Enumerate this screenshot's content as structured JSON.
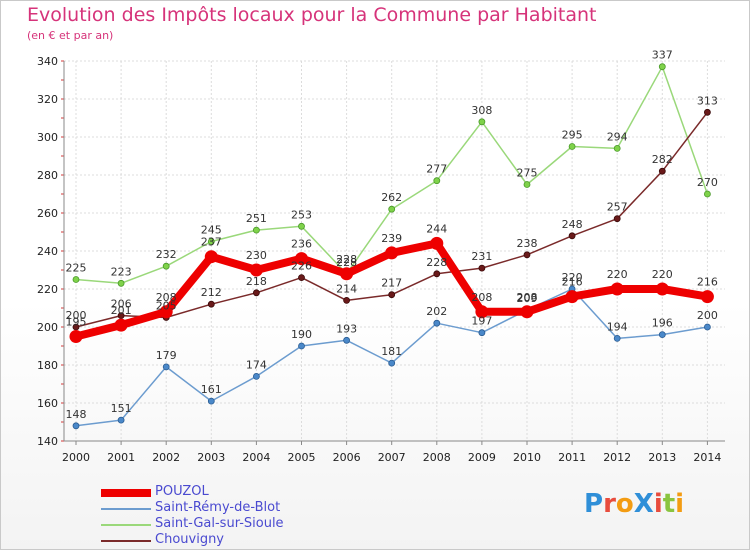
{
  "title": "Evolution des Impôts locaux pour la Commune par Habitant",
  "subtitle": "(en € et par an)",
  "logo": {
    "text": "ProXiti",
    "colors": [
      "#2f8fd8",
      "#e84c3d",
      "#f39c12",
      "#2f8fd8",
      "#e84c3d",
      "#8ac43f",
      "#f39c12"
    ]
  },
  "chart_data": {
    "type": "line",
    "categories": [
      "2000",
      "2001",
      "2002",
      "2003",
      "2004",
      "2005",
      "2006",
      "2007",
      "2008",
      "2009",
      "2010",
      "2011",
      "2012",
      "2013",
      "2014"
    ],
    "ylim": [
      140,
      340
    ],
    "yticks": [
      140,
      160,
      180,
      200,
      220,
      240,
      260,
      280,
      300,
      320,
      340
    ],
    "grid": true,
    "legend_position": "bottom-left",
    "series": [
      {
        "name": "POUZOL",
        "color": "#ee0000",
        "values": [
          195,
          201,
          208,
          237,
          230,
          236,
          228,
          239,
          244,
          208,
          208,
          216,
          220,
          220,
          216
        ],
        "labels": [
          "195",
          "201",
          "208",
          "237",
          "230",
          "236",
          "228",
          "239",
          "244",
          "208",
          "208",
          "216",
          "220",
          "220",
          "216"
        ]
      },
      {
        "name": "Saint-Rémy-de-Blot",
        "color": "#6c9ccf",
        "values": [
          148,
          151,
          179,
          161,
          174,
          190,
          193,
          181,
          202,
          197,
          209,
          220,
          194,
          196,
          200
        ],
        "labels": [
          "148",
          "151",
          "179",
          "161",
          "174",
          "190",
          "193",
          "181",
          "202",
          "197",
          "209",
          "220",
          "194",
          "196",
          "200"
        ]
      },
      {
        "name": "Saint-Gal-sur-Sioule",
        "color": "#9ad87a",
        "values": [
          225,
          223,
          232,
          245,
          251,
          253,
          228,
          262,
          277,
          308,
          275,
          295,
          294,
          337,
          270
        ],
        "labels": [
          "225",
          "223",
          "232",
          "245",
          "251",
          "253",
          "228",
          "262",
          "277",
          "308",
          "275",
          "295",
          "294",
          "337",
          "270"
        ]
      },
      {
        "name": "Chouvigny",
        "color": "#7a2a2a",
        "values": [
          200,
          206,
          205,
          212,
          218,
          226,
          214,
          217,
          228,
          231,
          238,
          248,
          257,
          282,
          313
        ],
        "labels": [
          "200",
          "206",
          "205",
          "212",
          "218",
          "226",
          "214",
          "217",
          "228",
          "231",
          "238",
          "248",
          "257",
          "282",
          "313"
        ]
      }
    ]
  }
}
